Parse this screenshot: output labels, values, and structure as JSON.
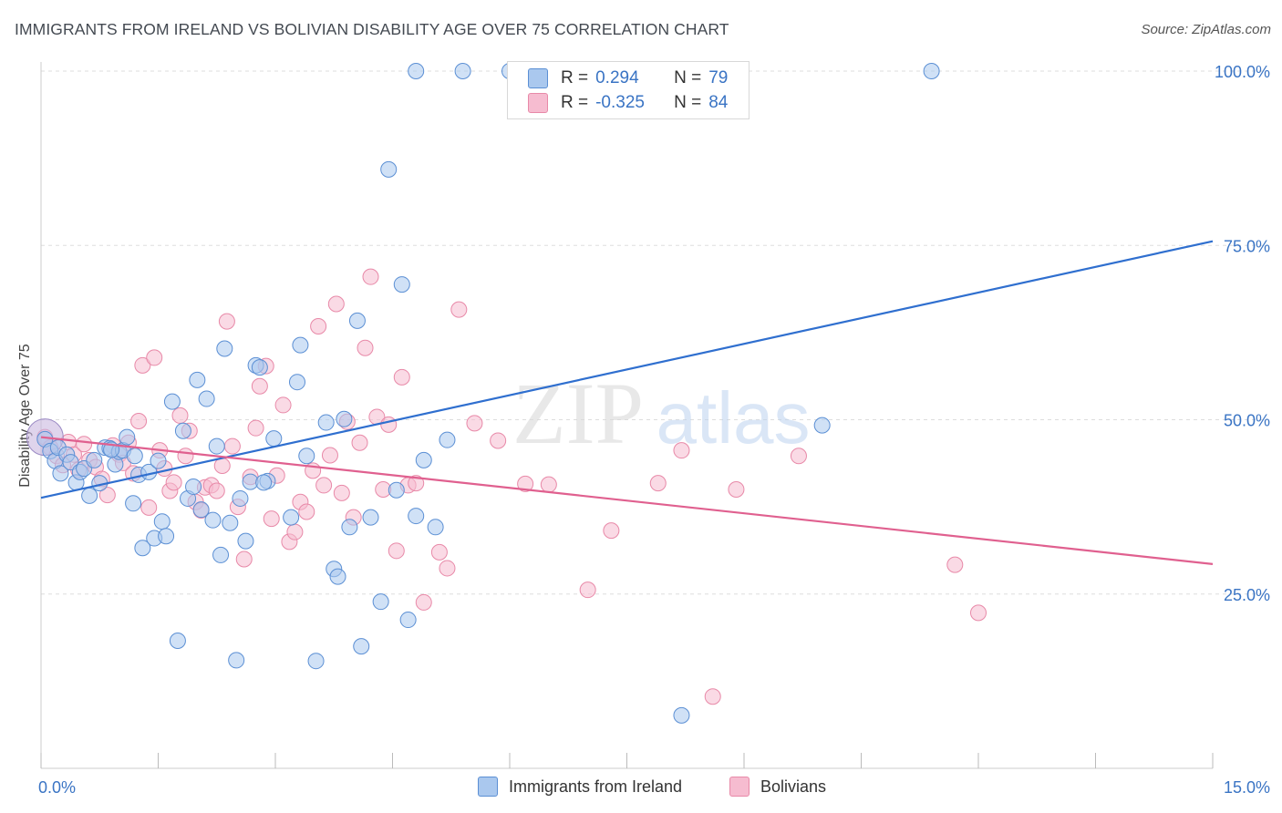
{
  "title": "IMMIGRANTS FROM IRELAND VS BOLIVIAN DISABILITY AGE OVER 75 CORRELATION CHART",
  "source": "Source: ZipAtlas.com",
  "watermark": {
    "zip": "ZIP",
    "atlas": "atlas"
  },
  "colors": {
    "blue_fill": "#aac8ee",
    "blue_stroke": "#5b8fd4",
    "blue_line": "#2f6fcf",
    "pink_fill": "#f6bcd0",
    "pink_stroke": "#e889a8",
    "pink_line": "#e0608f",
    "axis_text": "#3a74c4",
    "grid": "#dddddd"
  },
  "legend": {
    "rows": [
      {
        "r_label": "R =",
        "r_value": "0.294",
        "n_label": "N =",
        "n_value": "79"
      },
      {
        "r_label": "R =",
        "r_value": "-0.325",
        "n_label": "N =",
        "n_value": "84"
      }
    ]
  },
  "bottom_legend": [
    "Immigrants from Ireland",
    "Bolivians"
  ],
  "chart_data": {
    "type": "scatter",
    "title": "IMMIGRANTS FROM IRELAND VS BOLIVIAN DISABILITY AGE OVER 75 CORRELATION CHART",
    "xlabel": "",
    "ylabel": "Disability Age Over 75",
    "xlim": [
      0,
      15
    ],
    "ylim": [
      0,
      100
    ],
    "x_tick_labels": [
      "0.0%",
      "15.0%"
    ],
    "y_ticks": [
      25,
      50,
      75,
      100
    ],
    "y_tick_labels": [
      "25.0%",
      "50.0%",
      "75.0%",
      "100.0%"
    ],
    "grid": true,
    "legend_placement": "top-center",
    "series": [
      {
        "name": "Immigrants from Ireland",
        "r": 0.294,
        "n": 79,
        "trend": {
          "x": [
            0,
            15
          ],
          "y": [
            38.8,
            75.6
          ]
        },
        "points": [
          [
            0.05,
            47.2
          ],
          [
            0.12,
            45.5
          ],
          [
            0.18,
            44.1
          ],
          [
            0.22,
            46.0
          ],
          [
            0.25,
            42.3
          ],
          [
            0.33,
            45.0
          ],
          [
            0.38,
            43.9
          ],
          [
            0.45,
            41.0
          ],
          [
            0.5,
            42.5
          ],
          [
            0.55,
            43.0
          ],
          [
            0.62,
            39.1
          ],
          [
            0.68,
            44.2
          ],
          [
            0.75,
            40.9
          ],
          [
            0.82,
            46.0
          ],
          [
            0.88,
            45.9
          ],
          [
            0.95,
            43.6
          ],
          [
            1.0,
            45.4
          ],
          [
            1.05,
            45.6
          ],
          [
            1.1,
            47.5
          ],
          [
            1.18,
            38.0
          ],
          [
            1.25,
            42.1
          ],
          [
            1.3,
            31.6
          ],
          [
            1.38,
            42.5
          ],
          [
            1.45,
            33.0
          ],
          [
            1.5,
            44.1
          ],
          [
            1.55,
            35.4
          ],
          [
            1.6,
            33.3
          ],
          [
            1.68,
            52.6
          ],
          [
            1.75,
            18.3
          ],
          [
            1.82,
            48.4
          ],
          [
            1.88,
            38.7
          ],
          [
            1.95,
            40.4
          ],
          [
            2.0,
            55.7
          ],
          [
            2.05,
            37.1
          ],
          [
            2.12,
            53.0
          ],
          [
            2.2,
            35.6
          ],
          [
            2.25,
            46.2
          ],
          [
            2.3,
            30.6
          ],
          [
            2.35,
            60.2
          ],
          [
            2.42,
            35.2
          ],
          [
            2.5,
            15.5
          ],
          [
            2.55,
            38.7
          ],
          [
            2.62,
            32.6
          ],
          [
            2.68,
            41.1
          ],
          [
            2.75,
            57.8
          ],
          [
            2.8,
            57.5
          ],
          [
            2.9,
            41.2
          ],
          [
            2.98,
            47.3
          ],
          [
            3.2,
            36.0
          ],
          [
            3.28,
            55.4
          ],
          [
            3.32,
            60.7
          ],
          [
            3.4,
            44.8
          ],
          [
            3.52,
            15.4
          ],
          [
            3.65,
            49.6
          ],
          [
            3.75,
            28.6
          ],
          [
            3.8,
            27.5
          ],
          [
            3.88,
            50.1
          ],
          [
            3.95,
            34.6
          ],
          [
            4.05,
            64.2
          ],
          [
            4.1,
            17.5
          ],
          [
            4.22,
            36.0
          ],
          [
            4.35,
            23.9
          ],
          [
            4.45,
            85.9
          ],
          [
            4.55,
            39.9
          ],
          [
            4.62,
            69.4
          ],
          [
            4.7,
            21.3
          ],
          [
            4.8,
            36.2
          ],
          [
            4.9,
            44.2
          ],
          [
            5.05,
            34.6
          ],
          [
            5.2,
            47.1
          ],
          [
            4.8,
            100.0
          ],
          [
            5.4,
            100.0
          ],
          [
            6.0,
            100.0
          ],
          [
            8.2,
            7.6
          ],
          [
            10.0,
            49.2
          ],
          [
            11.4,
            100.0
          ],
          [
            0.9,
            45.7
          ],
          [
            1.2,
            44.8
          ],
          [
            2.85,
            41.0
          ]
        ],
        "big_point": [
          0.05,
          47.5
        ]
      },
      {
        "name": "Bolivians",
        "r": -0.325,
        "n": 84,
        "trend": {
          "x": [
            0,
            15
          ],
          "y": [
            47.5,
            29.3
          ]
        },
        "points": [
          [
            0.05,
            47.5
          ],
          [
            0.12,
            46.0
          ],
          [
            0.2,
            44.8
          ],
          [
            0.28,
            43.5
          ],
          [
            0.35,
            46.8
          ],
          [
            0.42,
            45.0
          ],
          [
            0.48,
            42.8
          ],
          [
            0.55,
            46.5
          ],
          [
            0.62,
            44.2
          ],
          [
            0.7,
            43.2
          ],
          [
            0.78,
            41.5
          ],
          [
            0.85,
            39.2
          ],
          [
            0.92,
            46.3
          ],
          [
            1.0,
            45.0
          ],
          [
            1.05,
            43.8
          ],
          [
            1.12,
            46.7
          ],
          [
            1.18,
            42.3
          ],
          [
            1.25,
            49.8
          ],
          [
            1.3,
            57.8
          ],
          [
            1.38,
            37.4
          ],
          [
            1.45,
            58.9
          ],
          [
            1.52,
            45.6
          ],
          [
            1.58,
            43.0
          ],
          [
            1.65,
            39.8
          ],
          [
            1.7,
            41.0
          ],
          [
            1.78,
            50.6
          ],
          [
            1.85,
            44.8
          ],
          [
            1.9,
            48.4
          ],
          [
            1.98,
            38.2
          ],
          [
            2.05,
            37.0
          ],
          [
            2.1,
            40.3
          ],
          [
            2.18,
            40.6
          ],
          [
            2.25,
            39.8
          ],
          [
            2.32,
            43.4
          ],
          [
            2.38,
            64.1
          ],
          [
            2.45,
            46.2
          ],
          [
            2.52,
            37.5
          ],
          [
            2.6,
            30.0
          ],
          [
            2.68,
            41.8
          ],
          [
            2.75,
            48.8
          ],
          [
            2.8,
            54.8
          ],
          [
            2.88,
            57.7
          ],
          [
            2.95,
            35.8
          ],
          [
            3.02,
            42.0
          ],
          [
            3.1,
            52.1
          ],
          [
            3.18,
            32.5
          ],
          [
            3.25,
            33.9
          ],
          [
            3.32,
            38.2
          ],
          [
            3.4,
            36.8
          ],
          [
            3.48,
            42.7
          ],
          [
            3.55,
            63.4
          ],
          [
            3.62,
            40.6
          ],
          [
            3.7,
            44.9
          ],
          [
            3.78,
            66.6
          ],
          [
            3.85,
            39.5
          ],
          [
            3.92,
            49.7
          ],
          [
            4.0,
            36.0
          ],
          [
            4.08,
            46.7
          ],
          [
            4.15,
            60.3
          ],
          [
            4.22,
            70.5
          ],
          [
            4.3,
            50.4
          ],
          [
            4.38,
            40.0
          ],
          [
            4.45,
            49.3
          ],
          [
            4.55,
            31.2
          ],
          [
            4.62,
            56.1
          ],
          [
            4.7,
            40.6
          ],
          [
            4.8,
            40.9
          ],
          [
            4.9,
            23.8
          ],
          [
            5.1,
            31.0
          ],
          [
            5.2,
            28.7
          ],
          [
            5.35,
            65.8
          ],
          [
            5.55,
            49.5
          ],
          [
            5.85,
            47.0
          ],
          [
            6.2,
            40.8
          ],
          [
            6.5,
            40.7
          ],
          [
            7.0,
            25.6
          ],
          [
            7.3,
            34.1
          ],
          [
            7.9,
            40.9
          ],
          [
            8.2,
            45.6
          ],
          [
            8.6,
            10.3
          ],
          [
            8.9,
            40.0
          ],
          [
            9.7,
            44.8
          ],
          [
            11.7,
            29.2
          ],
          [
            12.0,
            22.3
          ]
        ]
      }
    ]
  }
}
